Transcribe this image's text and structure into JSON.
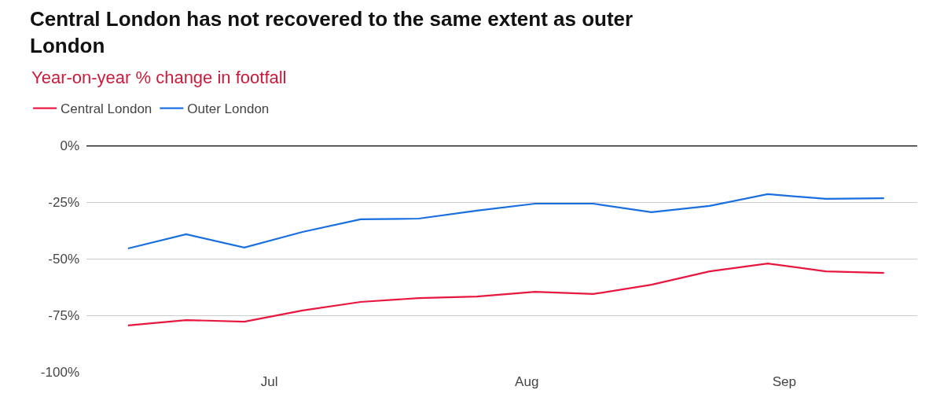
{
  "chart_data": {
    "type": "line",
    "title": "Central London has not recovered to the same extent as outer London",
    "subtitle": "Year-on-year % change in footfall",
    "x": [
      "--06-14",
      "--06-21",
      "--06-28",
      "--07-05",
      "--07-12",
      "--07-19",
      "--07-26",
      "--08-02",
      "--08-09",
      "--08-16",
      "--08-23",
      "--08-30",
      "--09-06",
      "--09-13"
    ],
    "series": [
      {
        "name": "Central London",
        "color": "#e8173f",
        "values": [
          -79.5,
          -77.1,
          -77.8,
          -72.9,
          -69.1,
          -67.4,
          -66.7,
          -64.6,
          -65.6,
          -61.5,
          -55.6,
          -52.1,
          -55.6,
          -56.3
        ]
      },
      {
        "name": "Outer London",
        "color": "#1a6fe0",
        "values": [
          -45.5,
          -39.2,
          -45.1,
          -38.2,
          -32.6,
          -32.3,
          -28.8,
          -25.7,
          -25.7,
          -29.5,
          -26.7,
          -21.5,
          -23.6,
          -23.3
        ]
      }
    ],
    "xlim": [
      "--06-09",
      "--09-17"
    ],
    "xticks": [
      {
        "value": "--07-01",
        "label": "Jul"
      },
      {
        "value": "--08-01",
        "label": "Aug"
      },
      {
        "value": "--09-01",
        "label": "Sep"
      }
    ],
    "ylim": [
      -100,
      0
    ],
    "yticks": [
      {
        "value": 0,
        "label": "0%"
      },
      {
        "value": -25,
        "label": "-25%"
      },
      {
        "value": -50,
        "label": "-50%"
      },
      {
        "value": -75,
        "label": "-75%"
      },
      {
        "value": -100,
        "label": "-100%"
      }
    ],
    "ref_lines": [
      {
        "axis": "y",
        "value": 0,
        "label": null,
        "color": "#000000"
      }
    ],
    "grid": "y",
    "legend": "top left",
    "marker": "none",
    "line_style": "solid"
  }
}
